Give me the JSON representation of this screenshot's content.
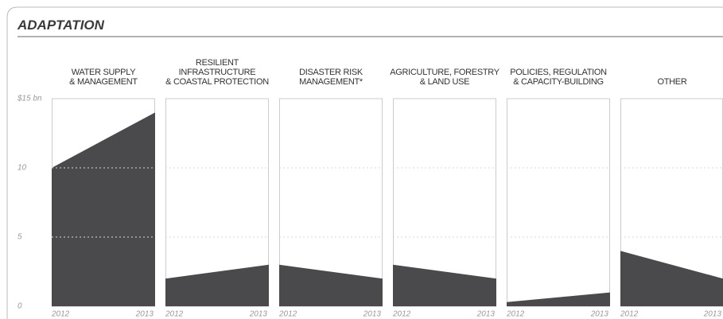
{
  "chart_data": {
    "type": "area",
    "title": "ADAPTATION",
    "categories": [
      "2012",
      "2013"
    ],
    "color": "#4a4a4d",
    "ylim": [
      0,
      15
    ],
    "yticks": [
      0,
      5,
      10,
      {
        "value": 15,
        "label": "$15 bn"
      }
    ],
    "grid": true,
    "series": [
      {
        "name": "WATER SUPPLY\n& MANAGEMENT",
        "values": [
          10,
          14
        ]
      },
      {
        "name": "RESILIENT\nINFRASTRUCTURE\n& COASTAL PROTECTION",
        "values": [
          2,
          3
        ]
      },
      {
        "name": "DISASTER RISK\nMANAGEMENT*",
        "values": [
          3,
          2
        ]
      },
      {
        "name": "AGRICULTURE, FORESTRY\n& LAND USE",
        "values": [
          3,
          2
        ]
      },
      {
        "name": "POLICIES, REGULATION\n& CAPACITY-BUILDING",
        "values": [
          0.3,
          1
        ]
      },
      {
        "name": "OTHER",
        "values": [
          4,
          2
        ]
      }
    ]
  }
}
